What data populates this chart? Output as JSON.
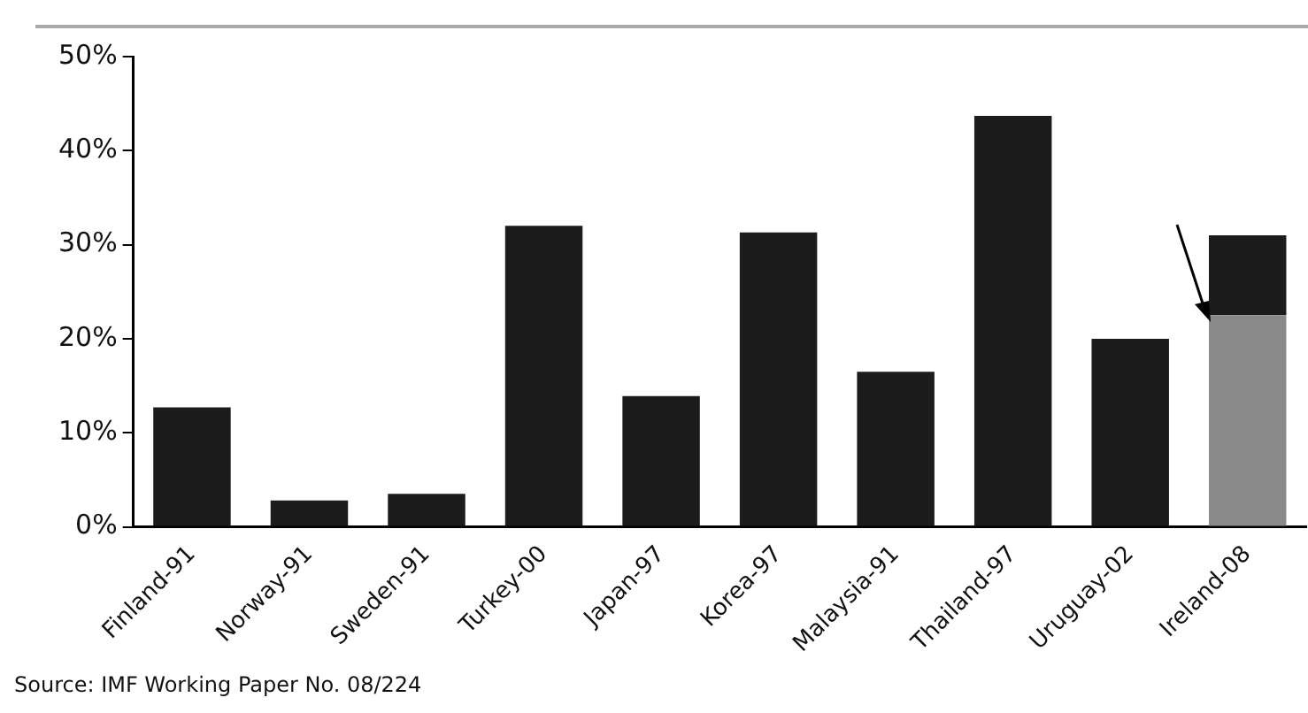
{
  "chart_data": {
    "type": "bar",
    "stacked": true,
    "categories": [
      "Finland-91",
      "Norway-91",
      "Sweden-91",
      "Turkey-00",
      "Japan-97",
      "Korea-97",
      "Malaysia-91",
      "Thailand-97",
      "Uruguay-02",
      "Ireland-08"
    ],
    "series": [
      {
        "colors": [
          "#1c1c1c",
          "#1c1c1c",
          "#1c1c1c",
          "#1c1c1c",
          "#1c1c1c",
          "#1c1c1c",
          "#1c1c1c",
          "#1c1c1c",
          "#1c1c1c",
          "#8a8a8a"
        ],
        "values": [
          12.7,
          2.8,
          3.5,
          32.0,
          13.9,
          31.3,
          16.5,
          43.7,
          20.0,
          22.5
        ]
      },
      {
        "color": "#1c1c1c",
        "values": [
          null,
          null,
          null,
          null,
          null,
          null,
          null,
          null,
          null,
          8.5
        ]
      }
    ],
    "ylim": [
      0,
      50
    ],
    "yticks": [
      {
        "value": 0,
        "label": "0%"
      },
      {
        "value": 10,
        "label": "10%"
      },
      {
        "value": 20,
        "label": "20%"
      },
      {
        "value": 30,
        "label": "30%"
      },
      {
        "value": 40,
        "label": "40%"
      },
      {
        "value": 50,
        "label": "50%"
      }
    ],
    "grid": false,
    "legend": false,
    "annotations": [
      "Source: IMF Working Paper No. 08/224"
    ]
  }
}
